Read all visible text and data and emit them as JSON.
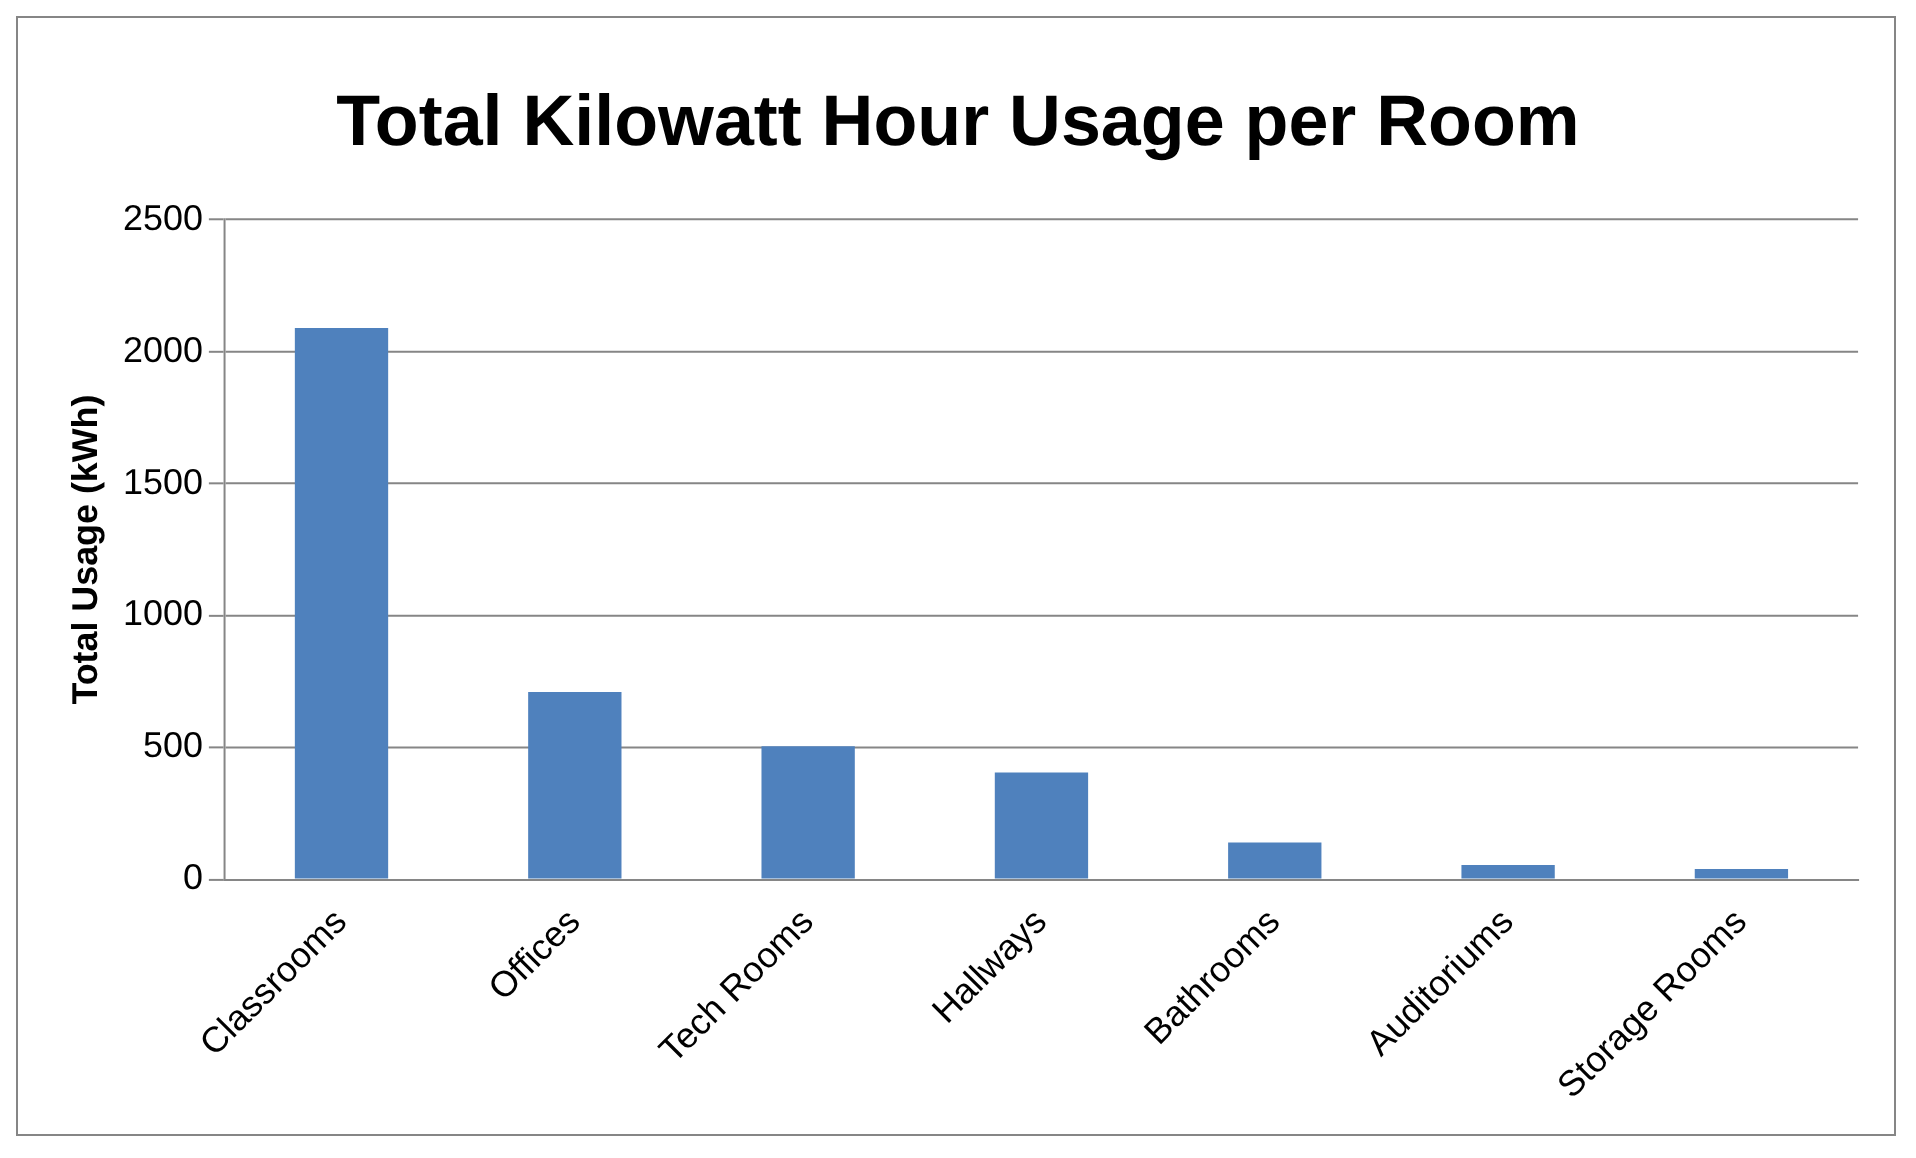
{
  "chart_data": {
    "type": "bar",
    "title": "Total Kilowatt Hour Usage per Room",
    "ylabel": "Total Usage (kWh)",
    "categories": [
      "Classrooms",
      "Offices",
      "Tech Rooms",
      "Hallways",
      "Bathrooms",
      "Auditoriums",
      "Storage Rooms"
    ],
    "values": [
      2090,
      710,
      505,
      405,
      140,
      55,
      40
    ],
    "color": "#4f81bd",
    "ylim": [
      0,
      2500
    ],
    "yticks": [
      0,
      500,
      1000,
      1500,
      2000,
      2500
    ],
    "grid": "y",
    "legend": false
  }
}
